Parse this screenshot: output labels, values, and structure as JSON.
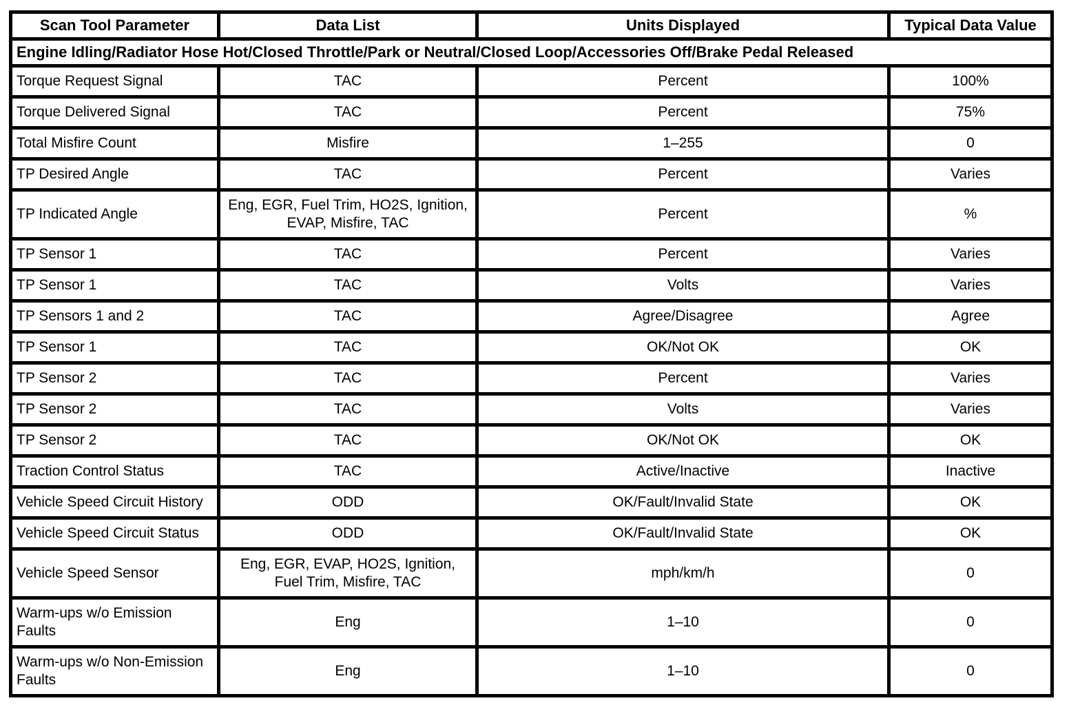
{
  "table": {
    "headers": [
      {
        "label": "Scan Tool Parameter"
      },
      {
        "label": "Data List"
      },
      {
        "label": "Units Displayed"
      },
      {
        "label": "Typical Data Value"
      }
    ],
    "condition": "Engine Idling/Radiator Hose Hot/Closed Throttle/Park or Neutral/Closed Loop/Accessories Off/Brake Pedal Released",
    "rows": [
      {
        "parameter": "Torque Request Signal",
        "data_list": "TAC",
        "units": "Percent",
        "value": "100%"
      },
      {
        "parameter": "Torque Delivered Signal",
        "data_list": "TAC",
        "units": "Percent",
        "value": "75%"
      },
      {
        "parameter": "Total Misfire Count",
        "data_list": "Misfire",
        "units": "1–255",
        "value": "0"
      },
      {
        "parameter": "TP Desired Angle",
        "data_list": "TAC",
        "units": "Percent",
        "value": "Varies"
      },
      {
        "parameter": "TP Indicated Angle",
        "data_list": "Eng, EGR, Fuel Trim, HO2S, Ignition, EVAP, Misfire, TAC",
        "units": "Percent",
        "value": "%"
      },
      {
        "parameter": "TP Sensor 1",
        "data_list": "TAC",
        "units": "Percent",
        "value": "Varies"
      },
      {
        "parameter": "TP Sensor 1",
        "data_list": "TAC",
        "units": "Volts",
        "value": "Varies"
      },
      {
        "parameter": "TP Sensors 1 and 2",
        "data_list": "TAC",
        "units": "Agree/Disagree",
        "value": "Agree"
      },
      {
        "parameter": "TP Sensor 1",
        "data_list": "TAC",
        "units": "OK/Not OK",
        "value": "OK"
      },
      {
        "parameter": "TP Sensor 2",
        "data_list": "TAC",
        "units": "Percent",
        "value": "Varies"
      },
      {
        "parameter": "TP Sensor 2",
        "data_list": "TAC",
        "units": "Volts",
        "value": "Varies"
      },
      {
        "parameter": "TP Sensor 2",
        "data_list": "TAC",
        "units": "OK/Not OK",
        "value": "OK"
      },
      {
        "parameter": "Traction Control Status",
        "data_list": "TAC",
        "units": "Active/Inactive",
        "value": "Inactive"
      },
      {
        "parameter": "Vehicle Speed Circuit History",
        "data_list": "ODD",
        "units": "OK/Fault/Invalid State",
        "value": "OK"
      },
      {
        "parameter": "Vehicle Speed Circuit Status",
        "data_list": "ODD",
        "units": "OK/Fault/Invalid State",
        "value": "OK"
      },
      {
        "parameter": "Vehicle Speed Sensor",
        "data_list": "Eng, EGR, EVAP, HO2S, Ignition, Fuel Trim, Misfire, TAC",
        "units": "mph/km/h",
        "value": "0"
      },
      {
        "parameter": "Warm-ups w/o Emission Faults",
        "data_list": "Eng",
        "units": "1–10",
        "value": "0"
      },
      {
        "parameter": "Warm-ups w/o Non-Emission Faults",
        "data_list": "Eng",
        "units": "1–10",
        "value": "0"
      }
    ]
  }
}
